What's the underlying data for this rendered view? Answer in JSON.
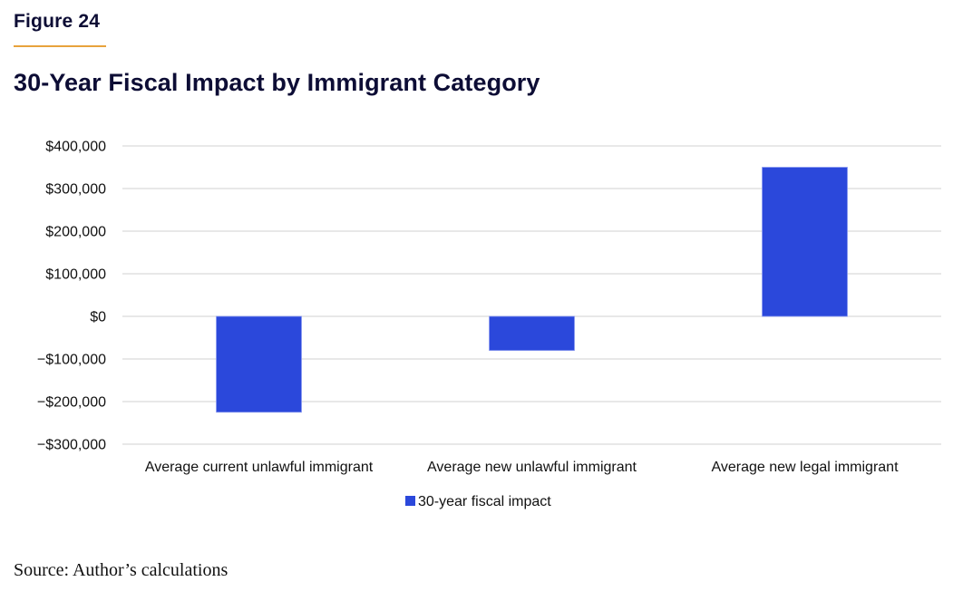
{
  "figure": {
    "label": "Figure 24",
    "accent_color": "#e8a33c",
    "title": "30-Year Fiscal Impact by Immigrant Category",
    "source": "Source: Author’s calculations"
  },
  "chart_data": {
    "type": "bar",
    "title": "30-Year Fiscal Impact by Immigrant Category",
    "xlabel": "",
    "ylabel": "",
    "categories": [
      "Average current unlawful immigrant",
      "Average new unlawful immigrant",
      "Average new legal immigrant"
    ],
    "series": [
      {
        "name": "30-year fiscal impact",
        "color": "#2b48db",
        "values": [
          -225000,
          -80000,
          350000
        ]
      }
    ],
    "ylim": [
      -300000,
      400000
    ],
    "yticks": [
      400000,
      300000,
      200000,
      100000,
      0,
      -100000,
      -200000,
      -300000
    ],
    "ytick_labels": [
      "$400,000",
      "$300,000",
      "$200,000",
      "$100,000",
      "$0",
      "−$100,000",
      "−$200,000",
      "−$300,000"
    ],
    "grid": true,
    "legend": "bottom-center"
  }
}
